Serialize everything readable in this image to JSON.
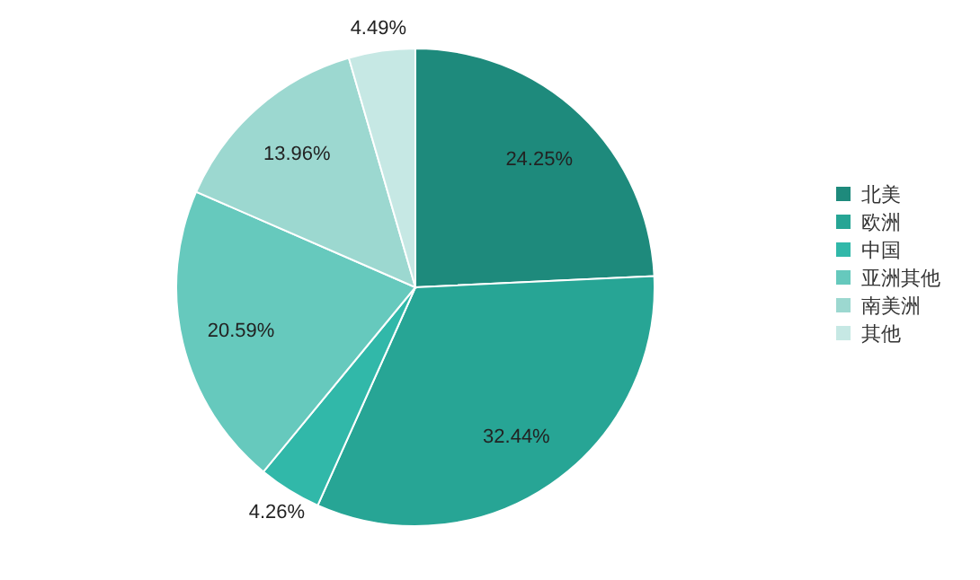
{
  "chart_data": {
    "type": "pie",
    "categories": [
      "北美",
      "欧洲",
      "中国",
      "亚洲其他",
      "南美洲",
      "其他"
    ],
    "values": [
      24.25,
      32.44,
      4.26,
      20.59,
      13.96,
      4.49
    ],
    "value_labels": [
      "24.25%",
      "32.44%",
      "4.26%",
      "20.59%",
      "13.96%",
      "4.49%"
    ],
    "colors": [
      "#1e8a7c",
      "#27a595",
      "#31b8a9",
      "#66c9bd",
      "#9cd8d0",
      "#c6e8e4"
    ],
    "legend": "right"
  }
}
